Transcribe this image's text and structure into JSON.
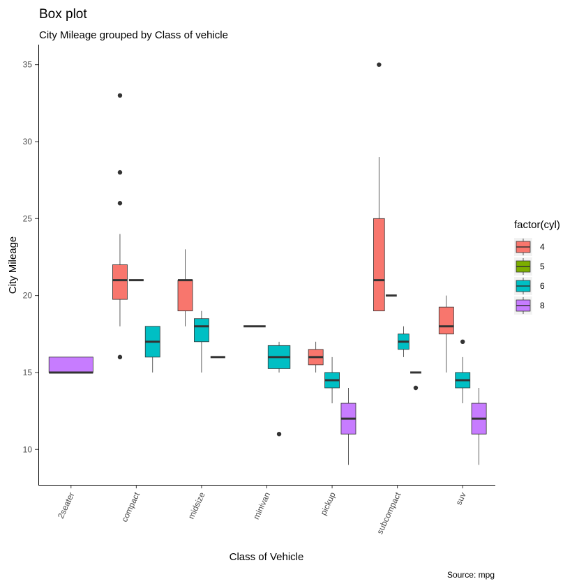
{
  "chart_data": {
    "type": "boxplot",
    "title": "Box plot",
    "subtitle": "City Mileage grouped by Class of vehicle",
    "xlabel": "Class of Vehicle",
    "ylabel": "City Mileage",
    "caption": "Source: mpg",
    "categories": [
      "2seater",
      "compact",
      "midsize",
      "minivan",
      "pickup",
      "subcompact",
      "suv"
    ],
    "y_ticks": [
      10,
      15,
      20,
      25,
      30,
      35
    ],
    "ylim": [
      7.7,
      36.3
    ],
    "legend": {
      "title": "factor(cyl)",
      "position": "right",
      "entries": [
        {
          "label": "4",
          "color": "#F8766D"
        },
        {
          "label": "5",
          "color": "#7CAE00"
        },
        {
          "label": "6",
          "color": "#00BFC4"
        },
        {
          "label": "8",
          "color": "#C77CFF"
        }
      ]
    },
    "boxes": [
      {
        "category": "2seater",
        "group": "8",
        "slots": 1,
        "slot": 0,
        "min": 15,
        "q1": 15,
        "median": 15,
        "q3": 16,
        "max": 16,
        "outliers": []
      },
      {
        "category": "compact",
        "group": "4",
        "slots": 3,
        "slot": 0,
        "min": 18,
        "q1": 19.75,
        "median": 21,
        "q3": 22,
        "max": 24,
        "outliers": [
          33,
          28,
          26,
          16
        ]
      },
      {
        "category": "compact",
        "group": "5",
        "slots": 3,
        "slot": 1,
        "min": 21,
        "q1": 21,
        "median": 21,
        "q3": 21,
        "max": 21,
        "outliers": []
      },
      {
        "category": "compact",
        "group": "6",
        "slots": 3,
        "slot": 2,
        "min": 15,
        "q1": 16,
        "median": 17,
        "q3": 18,
        "max": 18,
        "outliers": []
      },
      {
        "category": "midsize",
        "group": "4",
        "slots": 3,
        "slot": 0,
        "min": 18,
        "q1": 19,
        "median": 21,
        "q3": 21,
        "max": 23,
        "outliers": []
      },
      {
        "category": "midsize",
        "group": "6",
        "slots": 3,
        "slot": 1,
        "min": 15,
        "q1": 17,
        "median": 18,
        "q3": 18.5,
        "max": 19,
        "outliers": []
      },
      {
        "category": "midsize",
        "group": "8",
        "slots": 3,
        "slot": 2,
        "min": 16,
        "q1": 16,
        "median": 16,
        "q3": 16,
        "max": 16,
        "outliers": []
      },
      {
        "category": "minivan",
        "group": "4",
        "slots": 2,
        "slot": 0,
        "min": 18,
        "q1": 18,
        "median": 18,
        "q3": 18,
        "max": 18,
        "outliers": []
      },
      {
        "category": "minivan",
        "group": "6",
        "slots": 2,
        "slot": 1,
        "min": 15,
        "q1": 15.25,
        "median": 16,
        "q3": 16.75,
        "max": 17,
        "outliers": [
          11
        ]
      },
      {
        "category": "pickup",
        "group": "4",
        "slots": 3,
        "slot": 0,
        "min": 15,
        "q1": 15.5,
        "median": 16,
        "q3": 16.5,
        "max": 17,
        "outliers": []
      },
      {
        "category": "pickup",
        "group": "6",
        "slots": 3,
        "slot": 1,
        "min": 13,
        "q1": 14,
        "median": 14.5,
        "q3": 15,
        "max": 16,
        "outliers": []
      },
      {
        "category": "pickup",
        "group": "8",
        "slots": 3,
        "slot": 2,
        "min": 9,
        "q1": 11,
        "median": 12,
        "q3": 13,
        "max": 14,
        "outliers": []
      },
      {
        "category": "subcompact",
        "group": "4",
        "slots": 4,
        "slot": 0,
        "min": 19,
        "q1": 19,
        "median": 21,
        "q3": 25,
        "max": 29,
        "outliers": [
          35
        ]
      },
      {
        "category": "subcompact",
        "group": "5",
        "slots": 4,
        "slot": 1,
        "min": 20,
        "q1": 20,
        "median": 20,
        "q3": 20,
        "max": 20,
        "outliers": []
      },
      {
        "category": "subcompact",
        "group": "6",
        "slots": 4,
        "slot": 2,
        "min": 16,
        "q1": 16.5,
        "median": 17,
        "q3": 17.5,
        "max": 18,
        "outliers": []
      },
      {
        "category": "subcompact",
        "group": "8",
        "slots": 4,
        "slot": 3,
        "min": 15,
        "q1": 15,
        "median": 15,
        "q3": 15,
        "max": 15,
        "outliers": [
          14
        ]
      },
      {
        "category": "suv",
        "group": "4",
        "slots": 3,
        "slot": 0,
        "min": 15,
        "q1": 17.5,
        "median": 18,
        "q3": 19.25,
        "max": 20,
        "outliers": []
      },
      {
        "category": "suv",
        "group": "6",
        "slots": 3,
        "slot": 1,
        "min": 13,
        "q1": 14,
        "median": 14.5,
        "q3": 15,
        "max": 16,
        "outliers": [
          17
        ]
      },
      {
        "category": "suv",
        "group": "8",
        "slots": 3,
        "slot": 2,
        "min": 9,
        "q1": 11,
        "median": 12,
        "q3": 13,
        "max": 14,
        "outliers": []
      }
    ]
  }
}
